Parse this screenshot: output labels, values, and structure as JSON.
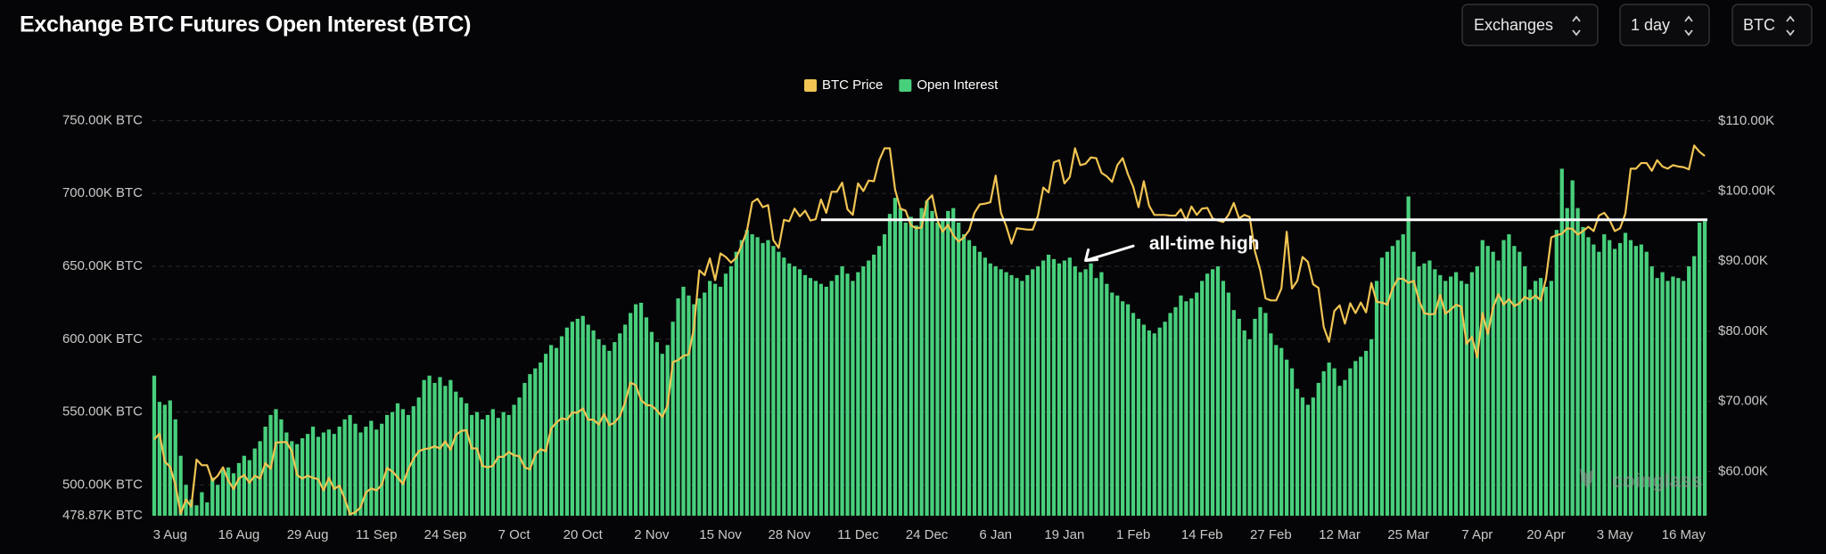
{
  "header": {
    "title": "Exchange BTC Futures Open Interest (BTC)",
    "controls": [
      "Exchanges",
      "1 day",
      "BTC"
    ]
  },
  "watermark": "coinglass",
  "chart_data": {
    "type": "combo",
    "categories": [
      null,
      null,
      null,
      "3 Aug",
      null,
      null,
      null,
      null,
      null,
      null,
      null,
      null,
      null,
      null,
      null,
      null,
      "16 Aug",
      null,
      null,
      null,
      null,
      null,
      null,
      null,
      null,
      null,
      null,
      null,
      null,
      "29 Aug",
      null,
      null,
      null,
      null,
      null,
      null,
      null,
      null,
      null,
      null,
      null,
      null,
      "11 Sep",
      null,
      null,
      null,
      null,
      null,
      null,
      null,
      null,
      null,
      null,
      null,
      null,
      "24 Sep",
      null,
      null,
      null,
      null,
      null,
      null,
      null,
      null,
      null,
      null,
      null,
      null,
      "7 Oct",
      null,
      null,
      null,
      null,
      null,
      null,
      null,
      null,
      null,
      null,
      null,
      null,
      "20 Oct",
      null,
      null,
      null,
      null,
      null,
      null,
      null,
      null,
      null,
      null,
      null,
      null,
      "2 Nov",
      null,
      null,
      null,
      null,
      null,
      null,
      null,
      null,
      null,
      null,
      null,
      null,
      "15 Nov",
      null,
      null,
      null,
      null,
      null,
      null,
      null,
      null,
      null,
      null,
      null,
      null,
      "28 Nov",
      null,
      null,
      null,
      null,
      null,
      null,
      null,
      null,
      null,
      null,
      null,
      null,
      "11 Dec",
      null,
      null,
      null,
      null,
      null,
      null,
      null,
      null,
      null,
      null,
      null,
      null,
      "24 Dec",
      null,
      null,
      null,
      null,
      null,
      null,
      null,
      null,
      null,
      null,
      null,
      null,
      "6 Jan",
      null,
      null,
      null,
      null,
      null,
      null,
      null,
      null,
      null,
      null,
      null,
      null,
      "19 Jan",
      null,
      null,
      null,
      null,
      null,
      null,
      null,
      null,
      null,
      null,
      null,
      null,
      "1 Feb",
      null,
      null,
      null,
      null,
      null,
      null,
      null,
      null,
      null,
      null,
      null,
      null,
      "14 Feb",
      null,
      null,
      null,
      null,
      null,
      null,
      null,
      null,
      null,
      null,
      null,
      null,
      "27 Feb",
      null,
      null,
      null,
      null,
      null,
      null,
      null,
      null,
      null,
      null,
      null,
      null,
      "12 Mar",
      null,
      null,
      null,
      null,
      null,
      null,
      null,
      null,
      null,
      null,
      null,
      null,
      "25 Mar",
      null,
      null,
      null,
      null,
      null,
      null,
      null,
      null,
      null,
      null,
      null,
      null,
      "7 Apr",
      null,
      null,
      null,
      null,
      null,
      null,
      null,
      null,
      null,
      null,
      null,
      null,
      "20 Apr",
      null,
      null,
      null,
      null,
      null,
      null,
      null,
      null,
      null,
      null,
      null,
      null,
      "3 May",
      null,
      null,
      null,
      null,
      null,
      null,
      null,
      null,
      null,
      null,
      null,
      null,
      "16 May",
      null,
      null,
      null,
      null
    ],
    "series": [
      {
        "name": "BTC Price",
        "type": "line",
        "axis": "y2",
        "color": "#f1c453",
        "values": [
          64.6,
          65.4,
          61.4,
          60.7,
          58.1,
          54.0,
          56.0,
          55.0,
          61.7,
          60.9,
          60.9,
          58.7,
          59.4,
          60.6,
          58.7,
          57.5,
          59.0,
          59.5,
          58.4,
          59.4,
          59.0,
          61.2,
          60.4,
          64.1,
          64.2,
          64.2,
          62.9,
          59.5,
          59.0,
          59.4,
          59.1,
          58.9,
          57.3,
          59.1,
          57.5,
          58.0,
          56.1,
          53.9,
          54.2,
          54.9,
          57.0,
          57.6,
          57.3,
          58.1,
          60.5,
          60.0,
          59.2,
          58.2,
          60.3,
          61.8,
          62.9,
          63.2,
          63.3,
          63.6,
          63.3,
          64.3,
          63.1,
          65.2,
          65.8,
          65.9,
          63.3,
          63.3,
          60.8,
          60.6,
          60.8,
          62.1,
          62.1,
          62.8,
          62.3,
          62.2,
          60.6,
          60.3,
          62.4,
          63.2,
          62.9,
          66.1,
          67.0,
          67.6,
          67.4,
          68.4,
          68.4,
          69.0,
          67.4,
          67.4,
          66.7,
          68.2,
          66.6,
          67.0,
          67.9,
          69.9,
          72.7,
          72.3,
          70.2,
          69.5,
          69.4,
          68.7,
          67.8,
          69.4,
          75.6,
          75.9,
          76.5,
          76.7,
          80.5,
          88.7,
          88.0,
          90.4,
          87.3,
          91.1,
          90.6,
          89.8,
          90.5,
          92.3,
          94.3,
          98.4,
          98.9,
          97.7,
          98.0,
          93.0,
          91.9,
          95.9,
          95.7,
          97.5,
          96.4,
          97.2,
          95.8,
          96.0,
          98.8,
          96.9,
          99.9,
          99.9,
          101.2,
          97.4,
          96.6,
          101.1,
          100.0,
          101.5,
          101.4,
          104.4,
          106.1,
          106.1,
          100.2,
          97.5,
          97.2,
          95.1,
          94.7,
          94.8,
          98.6,
          99.4,
          95.8,
          94.2,
          95.2,
          93.7,
          92.8,
          93.4,
          94.4,
          96.9,
          98.1,
          98.2,
          98.4,
          102.2,
          96.9,
          95.0,
          92.5,
          94.7,
          94.6,
          94.5,
          94.5,
          96.5,
          100.5,
          99.8,
          104.1,
          104.4,
          101.1,
          102.0,
          106.1,
          103.7,
          103.9,
          104.8,
          104.7,
          102.6,
          102.1,
          101.3,
          103.7,
          104.7,
          102.4,
          100.6,
          97.7,
          101.4,
          97.9,
          96.6,
          96.6,
          96.6,
          96.5,
          96.5,
          97.4,
          95.8,
          97.8,
          96.6,
          97.5,
          97.6,
          96.1,
          95.8,
          95.6,
          96.6,
          98.3,
          96.1,
          96.6,
          96.3,
          91.4,
          88.7,
          84.7,
          84.4,
          84.4,
          86.1,
          94.2,
          86.1,
          87.2,
          90.6,
          89.9,
          86.7,
          86.2,
          80.6,
          78.5,
          82.9,
          83.7,
          81.1,
          84.0,
          82.6,
          84.1,
          82.7,
          86.9,
          84.2,
          84.1,
          83.8,
          86.1,
          87.5,
          87.5,
          86.9,
          87.2,
          84.4,
          82.6,
          82.4,
          82.5,
          85.2,
          82.5,
          83.1,
          83.8,
          83.5,
          78.2,
          79.2,
          76.3,
          82.6,
          79.6,
          83.4,
          85.3,
          83.8,
          84.6,
          83.6,
          84.0,
          84.9,
          84.5,
          85.1,
          84.4,
          87.5,
          93.4,
          93.7,
          93.9,
          94.7,
          94.6,
          93.8,
          94.3,
          94.9,
          94.3,
          96.5,
          96.9,
          95.9,
          94.3,
          94.7,
          96.8,
          103.2,
          103.2,
          104.0,
          104.0,
          102.9,
          104.4,
          103.5,
          103.2,
          103.7,
          103.5,
          103.4,
          103.1,
          106.5,
          105.6,
          105.0
        ]
      },
      {
        "name": "Open Interest",
        "type": "bar",
        "axis": "y",
        "color": "#48cf7c",
        "values": [
          575,
          557,
          555,
          558,
          545,
          520,
          500,
          490,
          486,
          495,
          488,
          505,
          500,
          510,
          512,
          508,
          515,
          520,
          517,
          525,
          530,
          540,
          548,
          552,
          545,
          536,
          530,
          528,
          532,
          535,
          540,
          533,
          536,
          538,
          535,
          540,
          545,
          548,
          542,
          536,
          540,
          544,
          538,
          542,
          548,
          550,
          556,
          552,
          548,
          554,
          560,
          572,
          575,
          570,
          574,
          568,
          572,
          564,
          560,
          556,
          548,
          550,
          545,
          548,
          552,
          546,
          550,
          548,
          555,
          560,
          570,
          576,
          580,
          584,
          590,
          596,
          594,
          602,
          608,
          612,
          614,
          616,
          610,
          606,
          600,
          596,
          592,
          598,
          604,
          610,
          618,
          624,
          625,
          615,
          605,
          598,
          590,
          596,
          612,
          628,
          636,
          630,
          624,
          628,
          632,
          640,
          638,
          636,
          645,
          650,
          660,
          668,
          675,
          672,
          670,
          666,
          668,
          664,
          660,
          656,
          652,
          650,
          648,
          644,
          642,
          640,
          638,
          636,
          640,
          644,
          650,
          645,
          640,
          646,
          650,
          654,
          658,
          664,
          672,
          686,
          697,
          690,
          680,
          684,
          678,
          690,
          695,
          688,
          680,
          682,
          688,
          690,
          680,
          672,
          668,
          664,
          660,
          656,
          652,
          650,
          648,
          646,
          644,
          642,
          640,
          644,
          648,
          650,
          654,
          658,
          655,
          652,
          654,
          656,
          650,
          646,
          648,
          652,
          642,
          646,
          638,
          632,
          630,
          626,
          624,
          618,
          614,
          610,
          606,
          604,
          608,
          612,
          618,
          622,
          630,
          626,
          628,
          632,
          640,
          645,
          648,
          650,
          640,
          632,
          620,
          614,
          606,
          600,
          614,
          622,
          618,
          604,
          596,
          594,
          586,
          580,
          566,
          560,
          555,
          560,
          570,
          578,
          584,
          580,
          568,
          572,
          580,
          585,
          588,
          592,
          600,
          640,
          656,
          660,
          664,
          668,
          672,
          698,
          660,
          650,
          652,
          654,
          648,
          644,
          640,
          643,
          646,
          640,
          638,
          646,
          650,
          668,
          664,
          660,
          654,
          668,
          672,
          664,
          660,
          650,
          634,
          640,
          642,
          636,
          640,
          675,
          717,
          690,
          709,
          690,
          677,
          670,
          665,
          660,
          672,
          668,
          662,
          666,
          673,
          668,
          664,
          665,
          660,
          650,
          642,
          646,
          640,
          643,
          642,
          640,
          650,
          657,
          680,
          681
        ]
      }
    ],
    "ylim": [
      478.87,
      757
    ],
    "yticks": [
      {
        "value": 478.87,
        "label": "478.87K BTC"
      },
      {
        "value": 500,
        "label": "500.00K BTC"
      },
      {
        "value": 550,
        "label": "550.00K BTC"
      },
      {
        "value": 600,
        "label": "600.00K BTC"
      },
      {
        "value": 650,
        "label": "650.00K BTC"
      },
      {
        "value": 700,
        "label": "700.00K BTC"
      },
      {
        "value": 750,
        "label": "750.00K BTC"
      }
    ],
    "y2lim": [
      53.7,
      111.5
    ],
    "y2ticks": [
      {
        "value": 60,
        "label": "$60.00K"
      },
      {
        "value": 70,
        "label": "$70.00K"
      },
      {
        "value": 80,
        "label": "$80.00K"
      },
      {
        "value": 90,
        "label": "$90.00K"
      },
      {
        "value": 100,
        "label": "$100.00K"
      },
      {
        "value": 110,
        "label": "$110.00K"
      }
    ],
    "grid": true,
    "legend": "top",
    "annotation": {
      "text": "all-time high"
    },
    "reference_line": {
      "value": 682,
      "x_start": 126,
      "color": "#ffffff"
    }
  }
}
